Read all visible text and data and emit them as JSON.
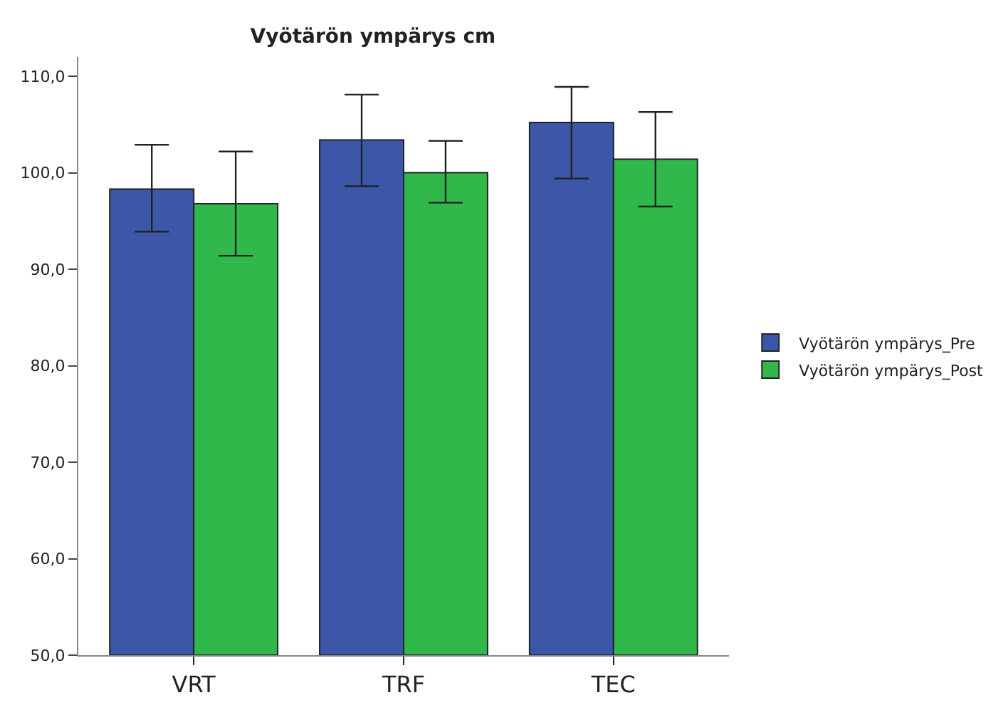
{
  "chart_data": {
    "type": "bar",
    "title": "Vyötärön ympärys cm",
    "categories": [
      "VRT",
      "TRF",
      "TEC"
    ],
    "series": [
      {
        "name": "Vyötärön ympärys_Pre",
        "color": "#3c57a8",
        "values": [
          98.3,
          103.4,
          105.2
        ],
        "errors": [
          [
            93.9,
            102.9
          ],
          [
            98.6,
            108.1
          ],
          [
            99.4,
            108.9
          ]
        ]
      },
      {
        "name": "Vyötärön ympärys_Post",
        "color": "#30b84a",
        "values": [
          96.8,
          100.0,
          101.4
        ],
        "errors": [
          [
            91.4,
            102.2
          ],
          [
            96.9,
            103.3
          ],
          [
            96.5,
            106.3
          ]
        ]
      }
    ],
    "ylim": [
      50,
      112
    ],
    "yticks": [
      {
        "value": 50,
        "label": "50,0"
      },
      {
        "value": 60,
        "label": "60,0"
      },
      {
        "value": 70,
        "label": "70,0"
      },
      {
        "value": 80,
        "label": "80,0"
      },
      {
        "value": 90,
        "label": "90,0"
      },
      {
        "value": 100,
        "label": "100,0"
      },
      {
        "value": 110,
        "label": "110,0"
      }
    ],
    "grid": false,
    "legend": "right"
  }
}
